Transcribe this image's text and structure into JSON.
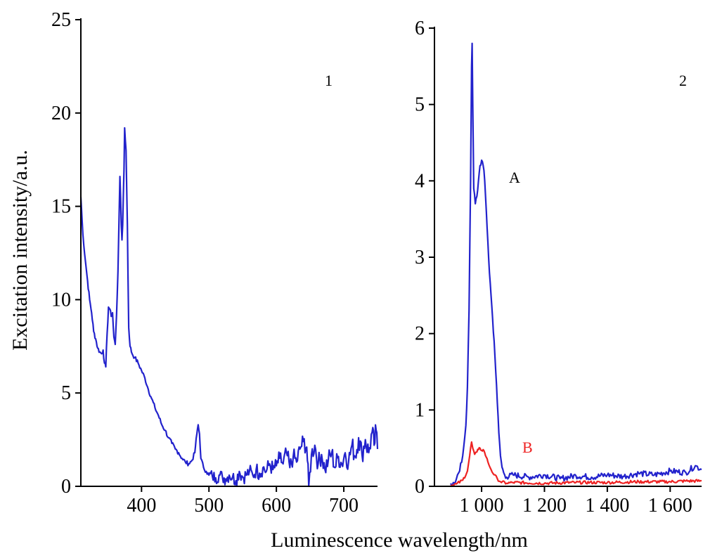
{
  "chart_data": [
    {
      "type": "line",
      "panel_label": "1",
      "ylabel": "Excitation intensity/a.u.",
      "xlim": [
        310,
        750
      ],
      "ylim": [
        0,
        25
      ],
      "x_ticks": [
        400,
        500,
        600,
        700
      ],
      "x_tick_labels": [
        "400",
        "500",
        "600",
        "700"
      ],
      "y_ticks": [
        0,
        5,
        10,
        15,
        20,
        25
      ],
      "y_tick_labels": [
        "0",
        "5",
        "10",
        "15",
        "20",
        "25"
      ],
      "grid": false,
      "series": [
        {
          "color": "#2222cc",
          "points": [
            [
              310,
              15.5
            ],
            [
              313,
              13.5
            ],
            [
              317,
              12
            ],
            [
              320,
              11
            ],
            [
              323,
              10
            ],
            [
              326,
              9.3
            ],
            [
              329,
              8.3
            ],
            [
              332,
              7.9
            ],
            [
              335,
              7.4
            ],
            [
              338,
              7.2
            ],
            [
              341,
              7.1
            ],
            [
              343,
              7.3
            ],
            [
              345,
              6.6
            ],
            [
              347,
              6.4
            ],
            [
              349,
              8.2
            ],
            [
              351,
              9.6
            ],
            [
              353,
              9.5
            ],
            [
              355,
              9.1
            ],
            [
              357,
              9.3
            ],
            [
              359,
              8.0
            ],
            [
              361,
              7.6
            ],
            [
              363,
              9.2
            ],
            [
              365,
              11.5
            ],
            [
              367,
              15.0
            ],
            [
              368,
              16.6
            ],
            [
              370,
              14.0
            ],
            [
              371,
              13.2
            ],
            [
              372,
              14.0
            ],
            [
              374,
              17.0
            ],
            [
              375,
              19.2
            ],
            [
              377,
              18.0
            ],
            [
              379,
              14.0
            ],
            [
              381,
              8.5
            ],
            [
              383,
              7.5
            ],
            [
              386,
              7.1
            ],
            [
              390,
              6.9
            ],
            [
              395,
              6.6
            ],
            [
              400,
              6.2
            ],
            [
              405,
              5.8
            ],
            [
              410,
              5.2
            ],
            [
              415,
              4.7
            ],
            [
              420,
              4.2
            ],
            [
              425,
              3.8
            ],
            [
              430,
              3.3
            ],
            [
              435,
              3.0
            ],
            [
              440,
              2.6
            ],
            [
              445,
              2.3
            ],
            [
              450,
              2.0
            ],
            [
              455,
              1.8
            ],
            [
              460,
              1.5
            ],
            [
              465,
              1.3
            ],
            [
              470,
              1.2
            ],
            [
              475,
              1.4
            ],
            [
              479,
              1.8
            ],
            [
              482,
              2.8
            ],
            [
              484,
              3.3
            ],
            [
              486,
              2.8
            ],
            [
              488,
              1.5
            ],
            [
              492,
              1.0
            ],
            [
              496,
              0.8
            ],
            [
              500,
              0.6
            ],
            [
              505,
              0.55
            ],
            [
              510,
              0.45
            ],
            [
              515,
              0.6
            ],
            [
              520,
              0.5
            ],
            [
              525,
              0.4
            ],
            [
              530,
              0.6
            ],
            [
              535,
              0.5
            ],
            [
              540,
              0.3
            ],
            [
              545,
              0.8
            ],
            [
              550,
              0.5
            ],
            [
              555,
              0.6
            ],
            [
              560,
              0.8
            ],
            [
              565,
              0.6
            ],
            [
              570,
              0.9
            ],
            [
              575,
              0.7
            ],
            [
              580,
              1.0
            ],
            [
              585,
              0.8
            ],
            [
              590,
              1.2
            ],
            [
              595,
              0.9
            ],
            [
              600,
              1.1
            ],
            [
              605,
              1.5
            ],
            [
              610,
              1.2
            ],
            [
              615,
              1.8
            ],
            [
              620,
              1.0
            ],
            [
              625,
              1.6
            ],
            [
              630,
              1.3
            ],
            [
              635,
              2.0
            ],
            [
              640,
              2.4
            ],
            [
              645,
              2.1
            ],
            [
              648,
              0.0
            ],
            [
              652,
              1.7
            ],
            [
              657,
              2.2
            ],
            [
              662,
              1.2
            ],
            [
              667,
              1.7
            ],
            [
              672,
              0.9
            ],
            [
              677,
              1.4
            ],
            [
              682,
              1.8
            ],
            [
              687,
              1.0
            ],
            [
              692,
              1.6
            ],
            [
              697,
              1.2
            ],
            [
              702,
              1.8
            ],
            [
              707,
              1.3
            ],
            [
              712,
              2.2
            ],
            [
              717,
              1.6
            ],
            [
              722,
              2.6
            ],
            [
              727,
              1.7
            ],
            [
              732,
              2.5
            ],
            [
              737,
              1.8
            ],
            [
              742,
              2.9
            ],
            [
              745,
              2.2
            ],
            [
              748,
              3.0
            ],
            [
              750,
              2.0
            ]
          ]
        }
      ]
    },
    {
      "type": "line",
      "panel_label": "2",
      "xlim": [
        850,
        1700
      ],
      "ylim": [
        0,
        6
      ],
      "x_ticks": [
        1000,
        1200,
        1400,
        1600
      ],
      "x_tick_labels": [
        "1 000",
        "1 200",
        "1 400",
        "1 600"
      ],
      "y_ticks": [
        0,
        1,
        2,
        3,
        4,
        5,
        6
      ],
      "y_tick_labels": [
        "0",
        "1",
        "2",
        "3",
        "4",
        "5",
        "6"
      ],
      "grid": false,
      "series": [
        {
          "name": "A",
          "color": "#2222cc",
          "points": [
            [
              900,
              0.03
            ],
            [
              910,
              0.05
            ],
            [
              920,
              0.1
            ],
            [
              930,
              0.2
            ],
            [
              940,
              0.4
            ],
            [
              950,
              0.8
            ],
            [
              955,
              1.3
            ],
            [
              960,
              2.3
            ],
            [
              965,
              4.0
            ],
            [
              968,
              5.5
            ],
            [
              970,
              5.8
            ],
            [
              972,
              5.0
            ],
            [
              975,
              3.9
            ],
            [
              980,
              3.7
            ],
            [
              985,
              3.8
            ],
            [
              990,
              4.0
            ],
            [
              995,
              4.2
            ],
            [
              1000,
              4.27
            ],
            [
              1005,
              4.2
            ],
            [
              1010,
              4.0
            ],
            [
              1015,
              3.6
            ],
            [
              1020,
              3.2
            ],
            [
              1025,
              2.8
            ],
            [
              1030,
              2.5
            ],
            [
              1035,
              2.2
            ],
            [
              1040,
              1.9
            ],
            [
              1045,
              1.5
            ],
            [
              1050,
              1.1
            ],
            [
              1055,
              0.7
            ],
            [
              1060,
              0.4
            ],
            [
              1065,
              0.25
            ],
            [
              1070,
              0.18
            ],
            [
              1080,
              0.12
            ],
            [
              1100,
              0.15
            ],
            [
              1150,
              0.12
            ],
            [
              1200,
              0.15
            ],
            [
              1250,
              0.1
            ],
            [
              1300,
              0.14
            ],
            [
              1350,
              0.12
            ],
            [
              1400,
              0.15
            ],
            [
              1450,
              0.13
            ],
            [
              1500,
              0.17
            ],
            [
              1550,
              0.15
            ],
            [
              1600,
              0.2
            ],
            [
              1650,
              0.18
            ],
            [
              1680,
              0.27
            ],
            [
              1700,
              0.22
            ]
          ]
        },
        {
          "name": "B",
          "color": "#ee2222",
          "points": [
            [
              900,
              0.01
            ],
            [
              920,
              0.03
            ],
            [
              940,
              0.08
            ],
            [
              955,
              0.2
            ],
            [
              962,
              0.4
            ],
            [
              968,
              0.58
            ],
            [
              972,
              0.5
            ],
            [
              978,
              0.42
            ],
            [
              985,
              0.45
            ],
            [
              990,
              0.48
            ],
            [
              995,
              0.5
            ],
            [
              1000,
              0.47
            ],
            [
              1005,
              0.48
            ],
            [
              1010,
              0.44
            ],
            [
              1015,
              0.38
            ],
            [
              1020,
              0.32
            ],
            [
              1030,
              0.22
            ],
            [
              1040,
              0.15
            ],
            [
              1050,
              0.1
            ],
            [
              1060,
              0.06
            ],
            [
              1080,
              0.04
            ],
            [
              1100,
              0.05
            ],
            [
              1200,
              0.04
            ],
            [
              1300,
              0.05
            ],
            [
              1400,
              0.05
            ],
            [
              1500,
              0.06
            ],
            [
              1600,
              0.06
            ],
            [
              1650,
              0.07
            ],
            [
              1700,
              0.07
            ]
          ]
        }
      ]
    }
  ],
  "shared_xlabel": "Luminescence wavelength/nm",
  "noise_seed": 7
}
